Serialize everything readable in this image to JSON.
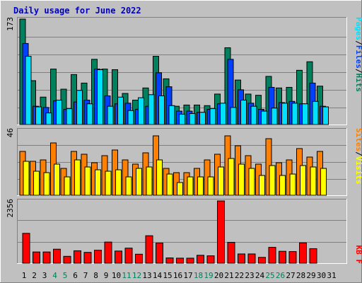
{
  "title": "Daily usage for June 2022",
  "colors": {
    "bg": "#c0c0c0",
    "title": "#0000c0",
    "hits": "#00805c",
    "files": "#0040ff",
    "pages": "#00e0ff",
    "visits": "#ffff00",
    "sites": "#ff8000",
    "kbytes": "#ff0000",
    "weekend": "#00805c"
  },
  "chart_data": [
    {
      "type": "bar",
      "panel": "hits-files-pages",
      "ymax_label": "173",
      "ylim": [
        0,
        173
      ],
      "categories": [
        "1",
        "2",
        "3",
        "4",
        "5",
        "6",
        "7",
        "8",
        "9",
        "10",
        "11",
        "12",
        "13",
        "14",
        "15",
        "16",
        "17",
        "18",
        "19",
        "20",
        "21",
        "22",
        "23",
        "24",
        "25",
        "26",
        "27",
        "28",
        "29",
        "30",
        "31"
      ],
      "weekend_days": [
        "4",
        "5",
        "11",
        "12",
        "18",
        "19",
        "25",
        "26"
      ],
      "legend": [
        {
          "label": "Hits",
          "color": "#00805c"
        },
        {
          "label": "Files",
          "color": "#0040ff"
        },
        {
          "label": "Pages",
          "color": "#00e0ff"
        }
      ],
      "series": [
        {
          "name": "Hits",
          "values": [
            173,
            72,
            45,
            91,
            58,
            82,
            68,
            107,
            91,
            90,
            51,
            40,
            60,
            112,
            75,
            30,
            32,
            32,
            31,
            50,
            126,
            73,
            50,
            48,
            79,
            60,
            61,
            89,
            103,
            63,
            0
          ]
        },
        {
          "name": "Files",
          "values": [
            133,
            30,
            28,
            39,
            25,
            37,
            40,
            91,
            47,
            34,
            35,
            25,
            30,
            85,
            62,
            22,
            22,
            20,
            25,
            34,
            107,
            57,
            35,
            25,
            61,
            36,
            38,
            34,
            68,
            30,
            0
          ]
        },
        {
          "name": "Pages",
          "values": [
            112,
            29,
            19,
            40,
            26,
            56,
            34,
            90,
            30,
            45,
            23,
            44,
            49,
            47,
            31,
            17,
            18,
            20,
            26,
            35,
            28,
            40,
            30,
            22,
            27,
            35,
            35,
            34,
            38,
            29,
            0
          ]
        }
      ]
    },
    {
      "type": "bar",
      "panel": "visits-sites",
      "ymax_label": "46",
      "ylim": [
        0,
        46
      ],
      "categories": [
        "1",
        "2",
        "3",
        "4",
        "5",
        "6",
        "7",
        "8",
        "9",
        "10",
        "11",
        "12",
        "13",
        "14",
        "15",
        "16",
        "17",
        "18",
        "19",
        "20",
        "21",
        "22",
        "23",
        "24",
        "25",
        "26",
        "27",
        "28",
        "29",
        "30",
        "31"
      ],
      "legend": [
        {
          "label": "Visits",
          "color": "#ffff00"
        },
        {
          "label": "Sites",
          "color": "#ff8000"
        }
      ],
      "series": [
        {
          "name": "Sites",
          "values": [
            31,
            24,
            25,
            37,
            19,
            31,
            29,
            23,
            28,
            32,
            25,
            22,
            30,
            42,
            19,
            16,
            16,
            19,
            25,
            29,
            42,
            35,
            28,
            22,
            40,
            23,
            25,
            33,
            27,
            31,
            0
          ]
        },
        {
          "name": "Visits",
          "values": [
            24,
            17,
            16,
            22,
            13,
            25,
            20,
            18,
            17,
            18,
            13,
            19,
            20,
            25,
            15,
            9,
            13,
            13,
            13,
            20,
            26,
            22,
            19,
            14,
            21,
            14,
            15,
            21,
            20,
            19,
            0
          ]
        }
      ]
    },
    {
      "type": "bar",
      "panel": "kbytes",
      "ymax_label": "2356",
      "ylim": [
        0,
        2356
      ],
      "categories": [
        "1",
        "2",
        "3",
        "4",
        "5",
        "6",
        "7",
        "8",
        "9",
        "10",
        "11",
        "12",
        "13",
        "14",
        "15",
        "16",
        "17",
        "18",
        "19",
        "20",
        "21",
        "22",
        "23",
        "24",
        "25",
        "26",
        "27",
        "28",
        "29",
        "30",
        "31"
      ],
      "legend": [
        {
          "label": "KB F",
          "color": "#ff0000"
        }
      ],
      "series": [
        {
          "name": "KB F",
          "values": [
            1130,
            425,
            425,
            530,
            260,
            470,
            410,
            490,
            800,
            460,
            570,
            340,
            1040,
            760,
            200,
            190,
            190,
            300,
            280,
            2356,
            790,
            350,
            350,
            220,
            600,
            450,
            440,
            770,
            550,
            0,
            0
          ]
        }
      ]
    }
  ]
}
